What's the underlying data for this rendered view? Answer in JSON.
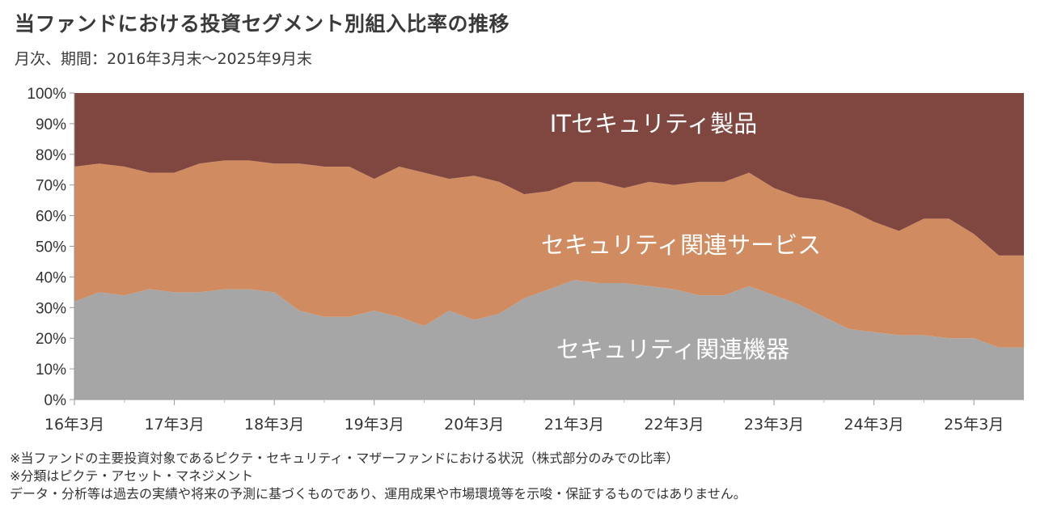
{
  "header": {
    "title": "当ファンドにおける投資セグメント別組入比率の推移",
    "subtitle": "月次、期間：2016年3月末～2025年9月末"
  },
  "chart_data": {
    "type": "area",
    "stacked": true,
    "percent": true,
    "title": "当ファンドにおける投資セグメント別組入比率の推移",
    "subtitle": "月次、期間：2016年3月末～2025年9月末",
    "ylim": [
      0,
      100
    ],
    "yticks": [
      "0%",
      "10%",
      "20%",
      "30%",
      "40%",
      "50%",
      "60%",
      "70%",
      "80%",
      "90%",
      "100%"
    ],
    "x_range": [
      "2016-03",
      "2025-09"
    ],
    "xticks": [
      "16年3月",
      "17年3月",
      "18年3月",
      "19年3月",
      "20年3月",
      "21年3月",
      "22年3月",
      "23年3月",
      "24年3月",
      "25年3月"
    ],
    "dates": [
      "2016-03",
      "2016-06",
      "2016-09",
      "2016-12",
      "2017-03",
      "2017-06",
      "2017-09",
      "2017-12",
      "2018-03",
      "2018-06",
      "2018-09",
      "2018-12",
      "2019-03",
      "2019-06",
      "2019-09",
      "2019-12",
      "2020-03",
      "2020-06",
      "2020-09",
      "2020-12",
      "2021-03",
      "2021-06",
      "2021-09",
      "2021-12",
      "2022-03",
      "2022-06",
      "2022-09",
      "2022-12",
      "2023-03",
      "2023-06",
      "2023-09",
      "2023-12",
      "2024-03",
      "2024-06",
      "2024-09",
      "2024-12",
      "2025-03",
      "2025-06",
      "2025-09"
    ],
    "series": [
      {
        "name": "セキュリティ関連機器",
        "color": "#a6a6a6",
        "values": [
          32,
          35,
          34,
          36,
          35,
          35,
          36,
          36,
          35,
          29,
          27,
          27,
          29,
          27,
          24,
          29,
          26,
          28,
          33,
          36,
          39,
          38,
          38,
          37,
          36,
          34,
          34,
          37,
          34,
          31,
          27,
          23,
          22,
          21,
          21,
          20,
          20,
          17,
          17
        ]
      },
      {
        "name": "セキュリティ関連サービス",
        "color": "#d08c60",
        "values": [
          44,
          42,
          42,
          38,
          39,
          42,
          42,
          42,
          42,
          48,
          49,
          49,
          43,
          49,
          50,
          43,
          47,
          43,
          34,
          32,
          32,
          33,
          31,
          34,
          34,
          37,
          37,
          37,
          35,
          35,
          38,
          39,
          36,
          34,
          38,
          39,
          34,
          30,
          30
        ]
      },
      {
        "name": "ITセキュリティ製品",
        "color": "#7f4740",
        "values": [
          24,
          23,
          24,
          26,
          26,
          23,
          22,
          22,
          23,
          23,
          24,
          24,
          28,
          24,
          26,
          28,
          27,
          29,
          33,
          32,
          29,
          29,
          31,
          29,
          30,
          29,
          29,
          26,
          31,
          34,
          35,
          38,
          42,
          45,
          41,
          41,
          46,
          53,
          53
        ]
      }
    ]
  },
  "notes": [
    "※当ファンドの主要投資対象であるピクテ・セキュリティ・マザーファンドにおける状況（株式部分のみでの比率）",
    "※分類はピクテ・アセット・マネジメント",
    "データ・分析等は過去の実績や将来の予測に基づくものであり、運用成果や市場環境等を示唆・保証するものではありません。"
  ]
}
